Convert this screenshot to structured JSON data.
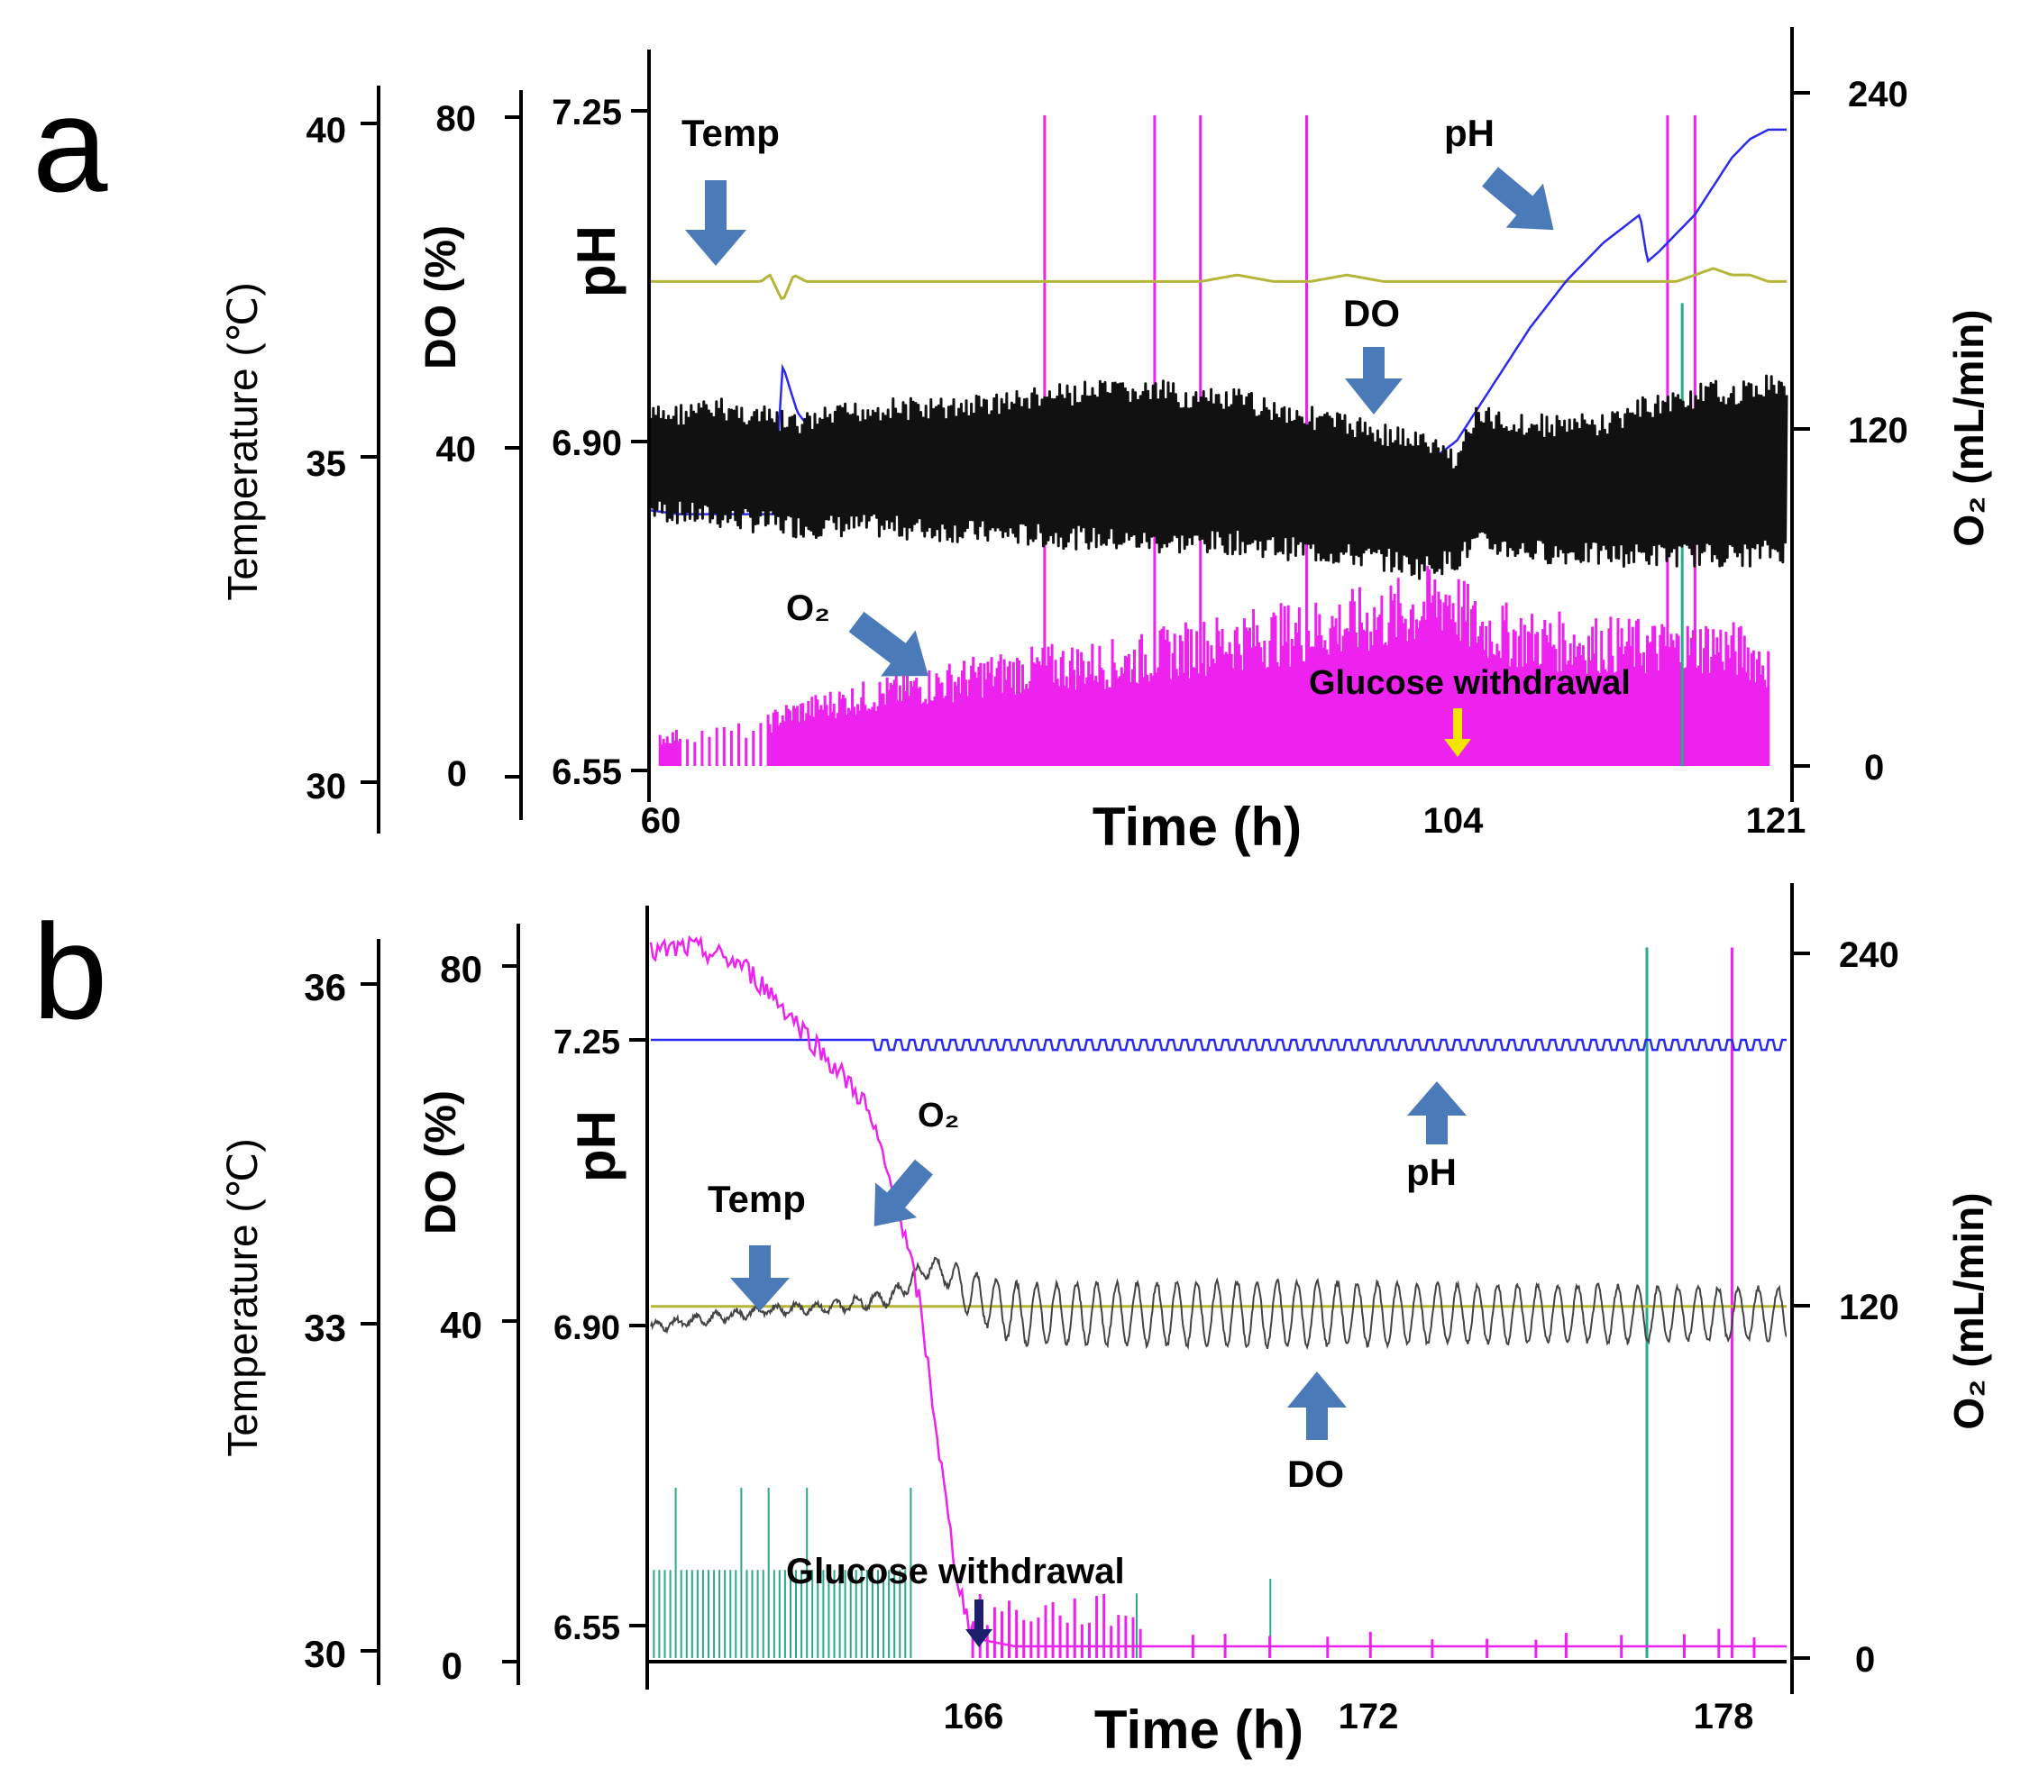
{
  "colors": {
    "temp": "#b5b53a",
    "ph": "#2b2bf0",
    "do": "#111111",
    "o2": "#ee22ee",
    "aux": "#2aaa88",
    "arrow": "#4a7ab8",
    "glucose_arrow_a": "#f2e600",
    "glucose_arrow_b": "#1e1e6e",
    "axis": "#000000"
  },
  "chart_data": [
    {
      "panel": "a",
      "type": "line",
      "xlabel": "Time (h)",
      "x_ticks": [
        "60",
        "104",
        "121"
      ],
      "xlim": [
        60,
        122
      ],
      "axes": {
        "temperature": {
          "label": "Temperature (℃)",
          "ticks": [
            "40",
            "35",
            "30"
          ],
          "ylim": [
            30,
            40
          ]
        },
        "do": {
          "label": "DO (%)",
          "ticks": [
            "80",
            "40",
            "0"
          ],
          "ylim": [
            0,
            80
          ]
        },
        "ph": {
          "label": "pH",
          "ticks": [
            "7.25",
            "6.90",
            "6.55"
          ],
          "ylim": [
            6.55,
            7.25
          ]
        },
        "o2": {
          "label": "O₂ (mL/min)",
          "ticks": [
            "240",
            "120",
            "0"
          ],
          "ylim": [
            0,
            240
          ]
        }
      },
      "series": [
        {
          "name": "Temp",
          "axis": "temperature",
          "x": [
            60,
            66,
            66.5,
            67.2,
            67.8,
            68.5,
            70,
            80,
            82,
            84,
            90,
            92,
            94,
            96,
            98,
            100,
            110,
            114,
            116,
            117,
            118,
            119,
            120,
            121,
            122
          ],
          "y": [
            37.6,
            37.6,
            37.7,
            37.3,
            37.7,
            37.6,
            37.6,
            37.6,
            37.6,
            37.6,
            37.6,
            37.7,
            37.6,
            37.6,
            37.7,
            37.6,
            37.6,
            37.6,
            37.6,
            37.7,
            37.8,
            37.7,
            37.7,
            37.6,
            37.6
          ]
        },
        {
          "name": "pH",
          "axis": "ph",
          "x": [
            60,
            61.5,
            66.7,
            67.2,
            68,
            70,
            75,
            80,
            85,
            90,
            95,
            100,
            102,
            104,
            106,
            108,
            110,
            112,
            114,
            114.4,
            115,
            116,
            117,
            118,
            119,
            120,
            121,
            122
          ],
          "y": [
            6.826,
            6.822,
            6.822,
            6.98,
            6.93,
            6.88,
            6.84,
            6.82,
            6.818,
            6.82,
            6.83,
            6.85,
            6.87,
            6.9,
            6.96,
            7.02,
            7.07,
            7.11,
            7.14,
            7.09,
            7.1,
            7.12,
            7.14,
            7.17,
            7.2,
            7.22,
            7.23,
            7.23
          ]
        },
        {
          "name": "DO",
          "axis": "do",
          "display": "oscillation envelope",
          "x": [
            60,
            64,
            68,
            72,
            76,
            80,
            84,
            88,
            90,
            92,
            96,
            100,
            102,
            104,
            105,
            108,
            112,
            114,
            116,
            118,
            120,
            121,
            122
          ],
          "upper": [
            45,
            46,
            44,
            46,
            46,
            47,
            48,
            48,
            47,
            47,
            45,
            43,
            42,
            40,
            45,
            44,
            44,
            46,
            47,
            48,
            48,
            49,
            49
          ],
          "lower": [
            31,
            30,
            29,
            29,
            28.5,
            28,
            27.5,
            27,
            27,
            27,
            26,
            25,
            24,
            25,
            27,
            26,
            25.5,
            25.5,
            25.5,
            25.5,
            25.5,
            26,
            26
          ]
        },
        {
          "name": "O₂",
          "axis": "o2",
          "display": "spiky envelope",
          "x": [
            60.5,
            62,
            66,
            67,
            70,
            74,
            78,
            82,
            86,
            88,
            92,
            96,
            100,
            102,
            103.5,
            104.5,
            105,
            108,
            112,
            116,
            118,
            120,
            121
          ],
          "y": [
            12,
            14,
            16,
            22,
            28,
            34,
            40,
            44,
            46,
            50,
            56,
            60,
            66,
            70,
            76,
            66,
            62,
            56,
            54,
            52,
            54,
            50,
            44
          ]
        }
      ],
      "event_lines": [
        {
          "color": "o2",
          "x": [
            81.5,
            87.5,
            90,
            95.8,
            115.5,
            117
          ],
          "top": 232
        },
        {
          "color": "aux",
          "x": [
            116.3
          ],
          "top": 165
        }
      ],
      "annotations": {
        "temp": "Temp",
        "ph": "pH",
        "do": "DO",
        "o2": "O₂",
        "glucose": "Glucose withdrawal"
      }
    },
    {
      "panel": "b",
      "type": "line",
      "xlabel": "Time (h)",
      "x_ticks": [
        "166",
        "172",
        "178"
      ],
      "xlim": [
        160,
        178.7
      ],
      "axes": {
        "temperature": {
          "label": "Temperature (℃)",
          "ticks": [
            "36",
            "33",
            "30"
          ],
          "ylim": [
            30,
            36
          ]
        },
        "do": {
          "label": "DO (%)",
          "ticks": [
            "80",
            "40",
            "0"
          ],
          "ylim": [
            0,
            80
          ]
        },
        "ph": {
          "label": "pH",
          "ticks": [
            "7.25",
            "6.90",
            "6.55"
          ],
          "ylim": [
            6.55,
            7.25
          ]
        },
        "o2": {
          "label": "O₂ (mL/min)",
          "ticks": [
            "240",
            "120",
            "0"
          ],
          "ylim": [
            0,
            240
          ]
        }
      },
      "series": [
        {
          "name": "Temp",
          "axis": "temperature",
          "x": [
            160,
            178.7
          ],
          "y": [
            33.1,
            33.1
          ]
        },
        {
          "name": "pH",
          "axis": "ph",
          "x": [
            160,
            163.6,
            178.7
          ],
          "y": [
            7.25,
            7.25,
            7.25
          ]
        },
        {
          "name": "DO",
          "axis": "do",
          "display": "oscillation",
          "x": [
            160,
            161,
            162,
            163,
            163.6,
            164,
            164.3,
            164.6,
            164.9,
            165.2,
            166,
            168,
            170,
            172,
            174,
            176,
            178,
            178.7
          ],
          "mean": [
            38.5,
            39.5,
            40.5,
            40.8,
            41.5,
            42,
            44,
            45.5,
            44.5,
            42.5,
            40,
            40,
            40,
            40,
            40,
            40,
            40,
            40
          ],
          "amplitude": [
            0.5,
            0.5,
            0.5,
            0.6,
            0.8,
            1,
            1,
            1,
            1.5,
            2.5,
            3.5,
            3.5,
            3.8,
            3.5,
            3.3,
            3.2,
            3.0,
            3.0
          ]
        },
        {
          "name": "O₂",
          "axis": "o2",
          "x": [
            160,
            160.6,
            161,
            161.5,
            162,
            162.5,
            163,
            163.5,
            163.8,
            164.1,
            164.4,
            164.6,
            164.8,
            165,
            165.2,
            165.5,
            166,
            178.7
          ],
          "y": [
            240,
            242,
            240,
            236,
            226,
            214,
            202,
            190,
            172,
            150,
            124,
            94,
            62,
            32,
            14,
            6,
            4,
            4
          ]
        }
      ],
      "event_lines": [
        {
          "color": "aux",
          "x": [
            176.4
          ],
          "top": 242
        },
        {
          "color": "o2",
          "x": [
            177.8
          ],
          "top": 242
        }
      ],
      "annotations": {
        "temp": "Temp",
        "ph": "pH",
        "do": "DO",
        "o2": "O₂",
        "glucose": "Glucose withdrawal"
      }
    }
  ],
  "panel_labels": {
    "a": "a",
    "b": "b"
  }
}
